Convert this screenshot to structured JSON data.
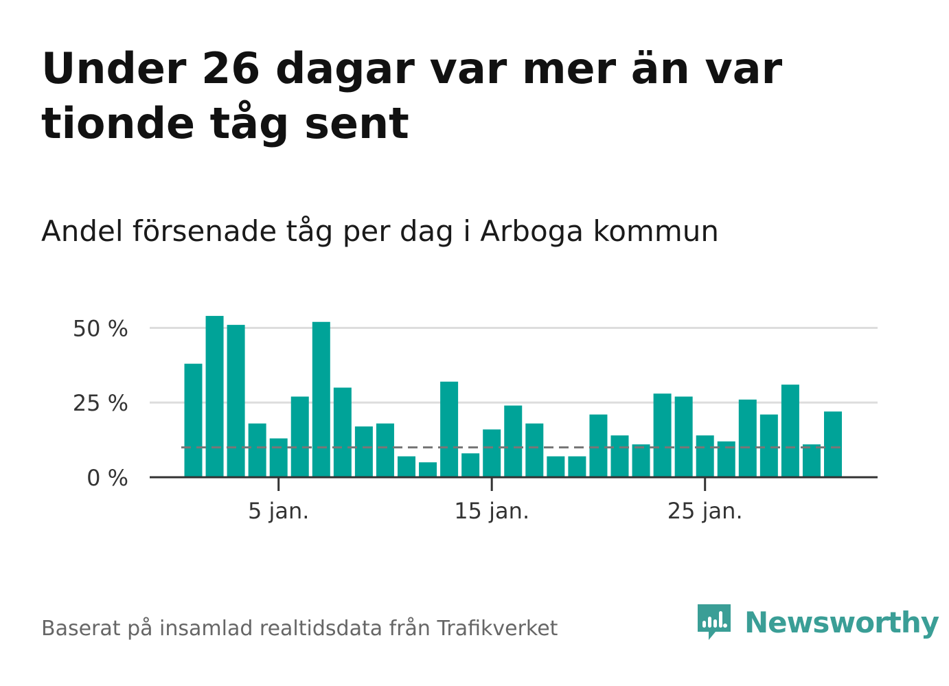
{
  "title": "Under 26 dagar var mer än var tionde tåg sent",
  "subtitle": "Andel försenade tåg per dag i Arboga kommun",
  "source": "Baserat på insamlad realtidsdata från Trafikverket",
  "brand": {
    "name": "Newsworthy",
    "color": "#3a9e96",
    "icon": "newsworthy-logo-icon"
  },
  "colors": {
    "bar": "#00a398",
    "grid": "#dddddd",
    "axis": "#333333",
    "reference": "#777777"
  },
  "chart_data": {
    "type": "bar",
    "categories": [
      "1 jan.",
      "2 jan.",
      "3 jan.",
      "4 jan.",
      "5 jan.",
      "6 jan.",
      "7 jan.",
      "8 jan.",
      "9 jan.",
      "10 jan.",
      "11 jan.",
      "12 jan.",
      "13 jan.",
      "14 jan.",
      "15 jan.",
      "16 jan.",
      "17 jan.",
      "18 jan.",
      "19 jan.",
      "20 jan.",
      "21 jan.",
      "22 jan.",
      "23 jan.",
      "24 jan.",
      "25 jan.",
      "26 jan.",
      "27 jan.",
      "28 jan.",
      "29 jan.",
      "30 jan.",
      "31 jan."
    ],
    "series": [
      {
        "values": [
          38,
          54,
          51,
          18,
          13,
          27,
          52,
          30,
          17,
          18,
          7,
          5,
          32,
          8,
          16,
          24,
          18,
          7,
          7,
          21,
          14,
          11,
          28,
          27,
          14,
          12,
          26,
          21,
          31,
          11,
          22
        ]
      }
    ],
    "reference_line": {
      "value": 10,
      "style": "dashed"
    },
    "ylim": [
      0,
      57
    ],
    "yticks": [
      0,
      25,
      50
    ],
    "ytick_labels": [
      "0 %",
      "25 %",
      "50 %"
    ],
    "xtick_positions": [
      5,
      15,
      25
    ],
    "xtick_labels": [
      "5 jan.",
      "15 jan.",
      "25 jan."
    ],
    "xlabel": "",
    "ylabel": "",
    "grid": true,
    "legend": "none"
  }
}
